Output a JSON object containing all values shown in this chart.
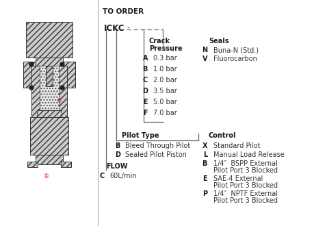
{
  "title": "TO ORDER",
  "code": "ICKC",
  "crack_pressure_header": [
    "Crack",
    "Pressure"
  ],
  "crack_pressure_items": [
    [
      "A",
      "0.3 bar"
    ],
    [
      "B",
      "1.0 bar"
    ],
    [
      "C",
      "2.0 bar"
    ],
    [
      "D",
      "3.5 bar"
    ],
    [
      "E",
      "5.0 bar"
    ],
    [
      "F",
      "7.0 bar"
    ]
  ],
  "seals_header": "Seals",
  "seals_items": [
    [
      "N",
      "Buna-N (Std.)"
    ],
    [
      "V",
      "Fluorocarbon"
    ]
  ],
  "pilot_type_header": "Pilot Type",
  "pilot_type_items": [
    [
      "B",
      "Bleed Through Pilot"
    ],
    [
      "D",
      "Sealed Pilot Piston"
    ]
  ],
  "control_header": "Control",
  "control_items": [
    [
      "X",
      "Standard Pilot",
      ""
    ],
    [
      "L",
      "Manual Load Release",
      ""
    ],
    [
      "B",
      "1/4″  BSPP External",
      "Pilot Port 3 Blocked"
    ],
    [
      "E",
      "SAE-4 External",
      "Pilot Port 3 Blocked"
    ],
    [
      "P",
      "1/4″  NPTF External",
      "Pilot Port 3 Blocked"
    ]
  ],
  "flow_header": "FLOW",
  "flow_items": [
    [
      "C",
      "60L/min"
    ]
  ],
  "line_color": "#666666",
  "bold_color": "#1a1a1a",
  "text_color": "#333333"
}
